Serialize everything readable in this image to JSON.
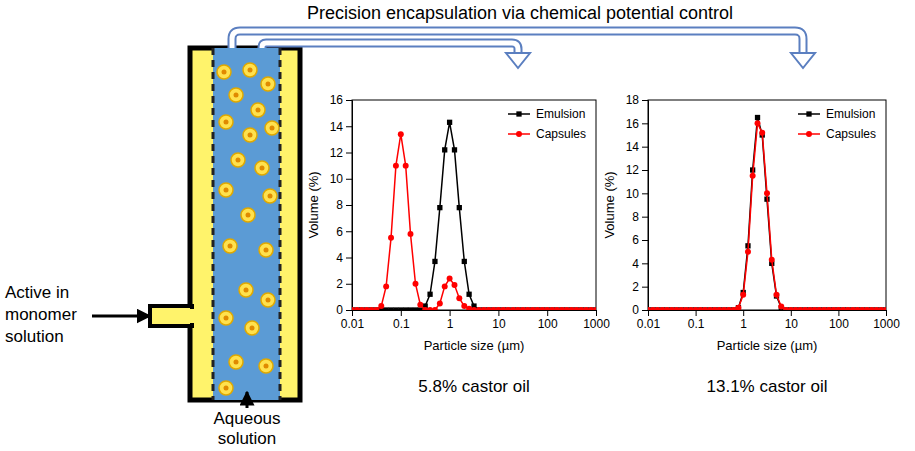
{
  "title": "Precision encapsulation via chemical potential control",
  "diagram": {
    "inlet_label": [
      "Active in",
      "monomer",
      "solution"
    ],
    "bottom_label": [
      "Aqueous",
      "solution"
    ]
  },
  "chart_data": [
    {
      "type": "line",
      "log": "x",
      "grid": false,
      "legend": "upper right",
      "x_label": "Particle size (µm)",
      "y_label": "Volume (%)",
      "annotations": [
        "5.8% castor oil"
      ],
      "xlim": [
        0.01,
        1000
      ],
      "xticks": [
        0.01,
        0.1,
        1,
        10,
        100,
        1000
      ],
      "ylim": [
        0,
        16
      ],
      "yticks": [
        0,
        2,
        4,
        6,
        8,
        10,
        12,
        14,
        16
      ],
      "x": [
        0.01,
        0.0126,
        0.0158,
        0.02,
        0.0251,
        0.0316,
        0.0398,
        0.0501,
        0.0631,
        0.0794,
        0.1,
        0.126,
        0.158,
        0.2,
        0.251,
        0.316,
        0.398,
        0.501,
        0.631,
        0.794,
        1,
        1.26,
        1.58,
        2,
        2.51,
        3.16,
        3.98,
        5.01,
        6.31,
        7.94,
        10,
        12.6,
        15.8,
        20,
        25.1,
        31.6,
        39.8,
        50.1,
        63.1,
        79.4,
        100,
        126,
        158,
        200,
        251,
        316,
        398,
        501,
        631,
        794,
        1000
      ],
      "series": [
        {
          "name": "Emulsion",
          "color": "#000000",
          "marker": "square",
          "line_style": "solid",
          "values": [
            0,
            0,
            0,
            0,
            0,
            0,
            0,
            0,
            0,
            0,
            0,
            0,
            0,
            0,
            0,
            0.3,
            1.2,
            3.7,
            7.8,
            12.2,
            14.3,
            12.2,
            7.8,
            3.7,
            1.2,
            0.3,
            0,
            0,
            0,
            0,
            0,
            0,
            0,
            0,
            0,
            0,
            0,
            0,
            0,
            0,
            0,
            0,
            0,
            0,
            0,
            0,
            0,
            0,
            0,
            0,
            0
          ]
        },
        {
          "name": "Capsules",
          "color": "#ff0000",
          "marker": "circle",
          "line_style": "solid",
          "values": [
            0,
            0,
            0,
            0,
            0,
            0,
            0.3,
            1.8,
            5.5,
            11,
            13.4,
            11,
            5.8,
            2,
            0.4,
            0,
            0,
            0,
            0.5,
            1.8,
            2.4,
            1.9,
            0.9,
            0.3,
            0.1,
            0,
            0,
            0,
            0,
            0,
            0,
            0,
            0,
            0,
            0,
            0,
            0,
            0,
            0,
            0,
            0,
            0,
            0,
            0,
            0,
            0,
            0,
            0,
            0,
            0,
            0
          ]
        }
      ]
    },
    {
      "type": "line",
      "log": "x",
      "grid": false,
      "legend": "upper right",
      "x_label": "Particle size (µm)",
      "y_label": "Volume (%)",
      "annotations": [
        "13.1% castor oil"
      ],
      "xlim": [
        0.01,
        1000
      ],
      "xticks": [
        0.01,
        0.1,
        1,
        10,
        100,
        1000
      ],
      "ylim": [
        0,
        18
      ],
      "yticks": [
        0,
        2,
        4,
        6,
        8,
        10,
        12,
        14,
        16,
        18
      ],
      "x": [
        0.01,
        0.0126,
        0.0158,
        0.02,
        0.0251,
        0.0316,
        0.0398,
        0.0501,
        0.0631,
        0.0794,
        0.1,
        0.126,
        0.158,
        0.2,
        0.251,
        0.316,
        0.398,
        0.501,
        0.631,
        0.794,
        1,
        1.26,
        1.58,
        2,
        2.51,
        3.16,
        3.98,
        5.01,
        6.31,
        7.94,
        10,
        12.6,
        15.8,
        20,
        25.1,
        31.6,
        39.8,
        50.1,
        63.1,
        79.4,
        100,
        126,
        158,
        200,
        251,
        316,
        398,
        501,
        631,
        794,
        1000
      ],
      "series": [
        {
          "name": "Emulsion",
          "color": "#000000",
          "marker": "square",
          "line_style": "solid",
          "values": [
            0,
            0,
            0,
            0,
            0,
            0,
            0,
            0,
            0,
            0,
            0,
            0,
            0,
            0,
            0,
            0,
            0,
            0,
            0,
            0.2,
            1.5,
            5.5,
            12,
            16.5,
            15,
            9.5,
            4,
            1.2,
            0.2,
            0,
            0,
            0,
            0,
            0,
            0,
            0,
            0,
            0,
            0,
            0,
            0,
            0,
            0,
            0,
            0,
            0,
            0,
            0,
            0,
            0,
            0
          ]
        },
        {
          "name": "Capsules",
          "color": "#ff0000",
          "marker": "circle",
          "line_style": "solid",
          "values": [
            0,
            0,
            0,
            0,
            0,
            0,
            0,
            0,
            0,
            0,
            0,
            0,
            0,
            0,
            0,
            0,
            0,
            0,
            0,
            0.2,
            1.3,
            5,
            11.5,
            16,
            15.2,
            10,
            4.3,
            1.3,
            0.3,
            0,
            0,
            0,
            0,
            0,
            0,
            0,
            0,
            0,
            0,
            0,
            0,
            0,
            0,
            0,
            0,
            0,
            0,
            0,
            0,
            0,
            0
          ]
        }
      ]
    }
  ]
}
